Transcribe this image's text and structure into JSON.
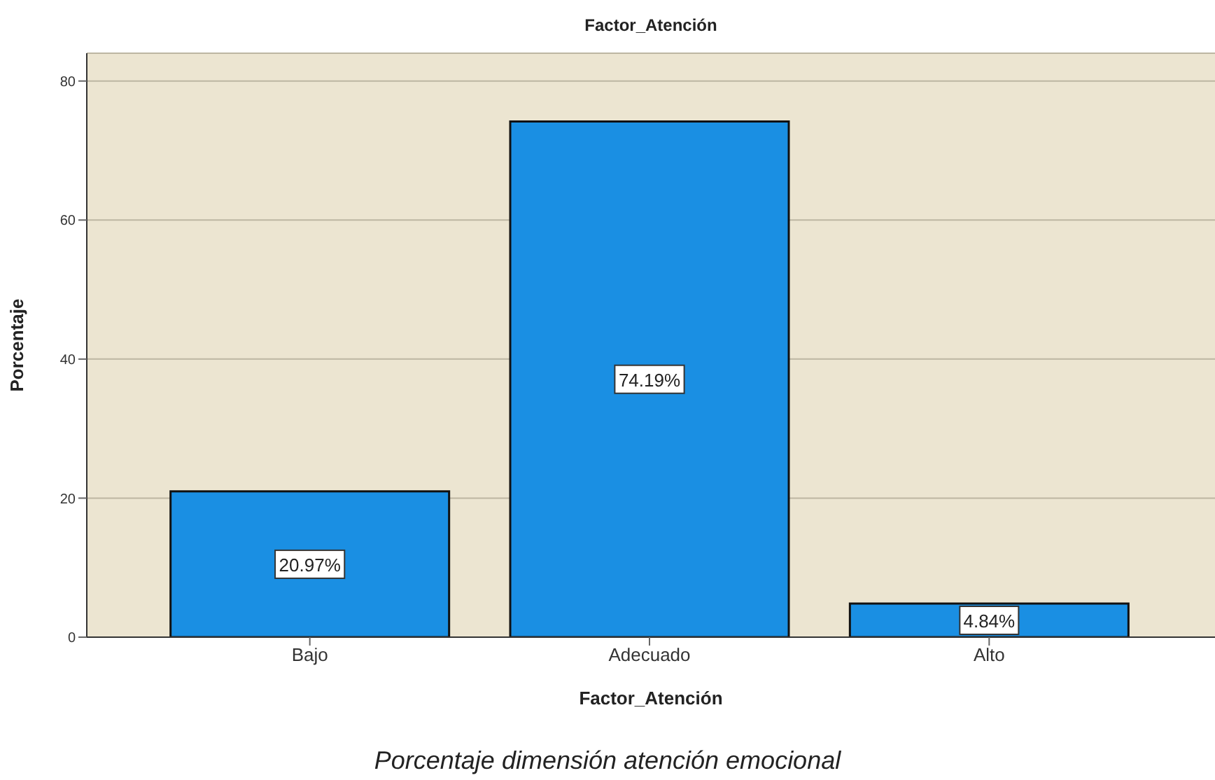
{
  "chart_data": {
    "type": "bar",
    "title": "Factor_Atención",
    "xlabel": "Factor_Atención",
    "ylabel": "Porcentaje",
    "categories": [
      "Bajo",
      "Adecuado",
      "Alto"
    ],
    "values": [
      20.97,
      74.19,
      4.84
    ],
    "value_labels": [
      "20.97%",
      "74.19%",
      "4.84%"
    ],
    "color": "#1a8fe3",
    "ylim": [
      0,
      84
    ],
    "yticks": [
      0,
      20,
      40,
      60,
      80
    ],
    "grid": "y",
    "annotations": [
      "Porcentaje dimensión atención emocional"
    ]
  }
}
